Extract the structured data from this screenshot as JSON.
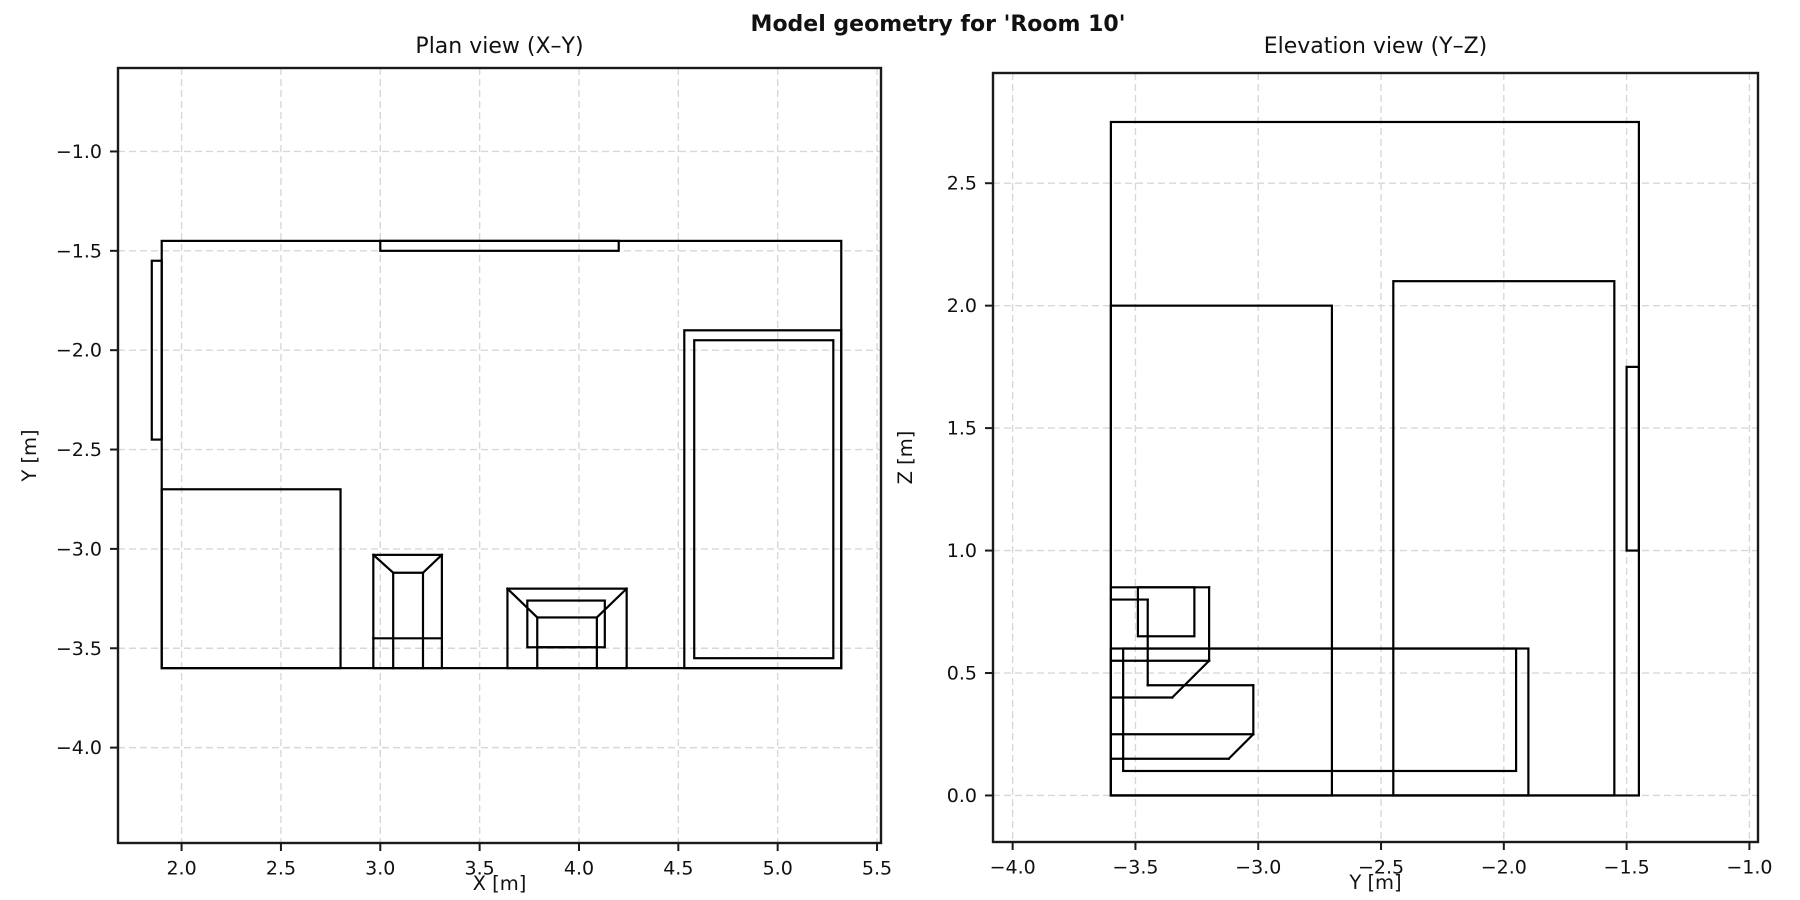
{
  "figure": {
    "suptitle": "Model geometry for 'Room 10'"
  },
  "chart_data": [
    {
      "id": "plan-view",
      "type": "line",
      "title": "Plan view (X–Y)",
      "xlabel": "X [m]",
      "ylabel": "Y [m]",
      "xlim": [
        1.68,
        5.52
      ],
      "ylim": [
        -4.48,
        -0.58
      ],
      "xticks": [
        2.0,
        2.5,
        3.0,
        3.5,
        4.0,
        4.5,
        5.0,
        5.5
      ],
      "yticks": [
        -1.0,
        -1.5,
        -2.0,
        -2.5,
        -3.0,
        -3.5,
        -4.0
      ],
      "grid": true,
      "line_color": "#000000",
      "shapes": [
        {
          "name": "room-outline",
          "rects": [
            [
              1.9,
              -3.6,
              5.32,
              -1.45
            ]
          ]
        },
        {
          "name": "window-top-wall",
          "rects": [
            [
              3.0,
              -1.5,
              4.2,
              -1.45
            ]
          ]
        },
        {
          "name": "door-left-wall",
          "rects": [
            [
              1.85,
              -2.45,
              1.9,
              -1.55
            ]
          ]
        },
        {
          "name": "wardrobe",
          "rects": [
            [
              1.9,
              -3.6,
              2.8,
              -2.7
            ]
          ]
        },
        {
          "name": "bed-frame",
          "rects": [
            [
              4.53,
              -3.6,
              5.32,
              -1.9
            ]
          ]
        },
        {
          "name": "bed-mattress",
          "rects": [
            [
              4.58,
              -3.55,
              5.28,
              -1.95
            ]
          ]
        },
        {
          "name": "stool",
          "rects": [
            [
              2.965,
              -3.6,
              3.31,
              -3.03
            ]
          ],
          "segments": [
            [
              3.065,
              -3.12,
              3.215,
              -3.12
            ],
            [
              3.065,
              -3.12,
              3.065,
              -3.6
            ],
            [
              3.215,
              -3.12,
              3.215,
              -3.6
            ],
            [
              2.965,
              -3.45,
              3.31,
              -3.45
            ],
            [
              2.965,
              -3.03,
              3.065,
              -3.12
            ],
            [
              3.31,
              -3.03,
              3.215,
              -3.12
            ]
          ]
        },
        {
          "name": "armchair",
          "rects": [
            [
              3.64,
              -3.6,
              4.24,
              -3.2
            ],
            [
              3.74,
              -3.495,
              4.13,
              -3.26
            ],
            [
              3.79,
              -3.495,
              4.09,
              -3.345
            ]
          ],
          "segments": [
            [
              3.79,
              -3.495,
              3.79,
              -3.6
            ],
            [
              4.09,
              -3.495,
              4.09,
              -3.6
            ],
            [
              3.64,
              -3.2,
              3.79,
              -3.345
            ],
            [
              4.24,
              -3.2,
              4.09,
              -3.345
            ]
          ]
        }
      ]
    },
    {
      "id": "elevation-view",
      "type": "line",
      "title": "Elevation view (Y–Z)",
      "xlabel": "Y [m]",
      "ylabel": "Z [m]",
      "xlim": [
        -4.08,
        -0.965
      ],
      "ylim": [
        -0.19,
        2.95
      ],
      "xticks": [
        -4.0,
        -3.5,
        -3.0,
        -2.5,
        -2.0,
        -1.5,
        -1.0
      ],
      "yticks": [
        0.0,
        0.5,
        1.0,
        1.5,
        2.0,
        2.5
      ],
      "grid": true,
      "line_color": "#000000",
      "shapes": [
        {
          "name": "room-outline",
          "rects": [
            [
              -3.6,
              0,
              -1.45,
              2.75
            ]
          ]
        },
        {
          "name": "wardrobe",
          "rects": [
            [
              -3.6,
              0,
              -2.7,
              2.0
            ]
          ]
        },
        {
          "name": "door",
          "rects": [
            [
              -2.45,
              0,
              -1.55,
              2.1
            ]
          ]
        },
        {
          "name": "window-right-wall",
          "rects": [
            [
              -1.5,
              1.0,
              -1.45,
              1.75
            ]
          ]
        },
        {
          "name": "bed-frame",
          "rects": [
            [
              -3.6,
              0,
              -1.9,
              0.6
            ]
          ]
        },
        {
          "name": "bed-mattress",
          "rects": [
            [
              -3.55,
              0.1,
              -1.95,
              0.6
            ]
          ]
        },
        {
          "name": "seating-wireframe",
          "rects": [
            [
              -3.49,
              0.65,
              -3.26,
              0.85
            ]
          ],
          "segments": [
            [
              -3.6,
              0.85,
              -3.2,
              0.85
            ],
            [
              -3.6,
              0.8,
              -3.45,
              0.8
            ],
            [
              -3.45,
              0.45,
              -3.45,
              0.8
            ],
            [
              -3.2,
              0.55,
              -3.2,
              0.85
            ],
            [
              -3.6,
              0.55,
              -3.2,
              0.55
            ],
            [
              -3.45,
              0.45,
              -3.02,
              0.45
            ],
            [
              -3.02,
              0.25,
              -3.02,
              0.45
            ],
            [
              -3.6,
              0.4,
              -3.35,
              0.4
            ],
            [
              -3.6,
              0.25,
              -3.02,
              0.25
            ],
            [
              -3.6,
              0.15,
              -3.12,
              0.15
            ],
            [
              -3.2,
              0.55,
              -3.35,
              0.4
            ],
            [
              -3.02,
              0.25,
              -3.12,
              0.15
            ]
          ]
        }
      ]
    }
  ]
}
